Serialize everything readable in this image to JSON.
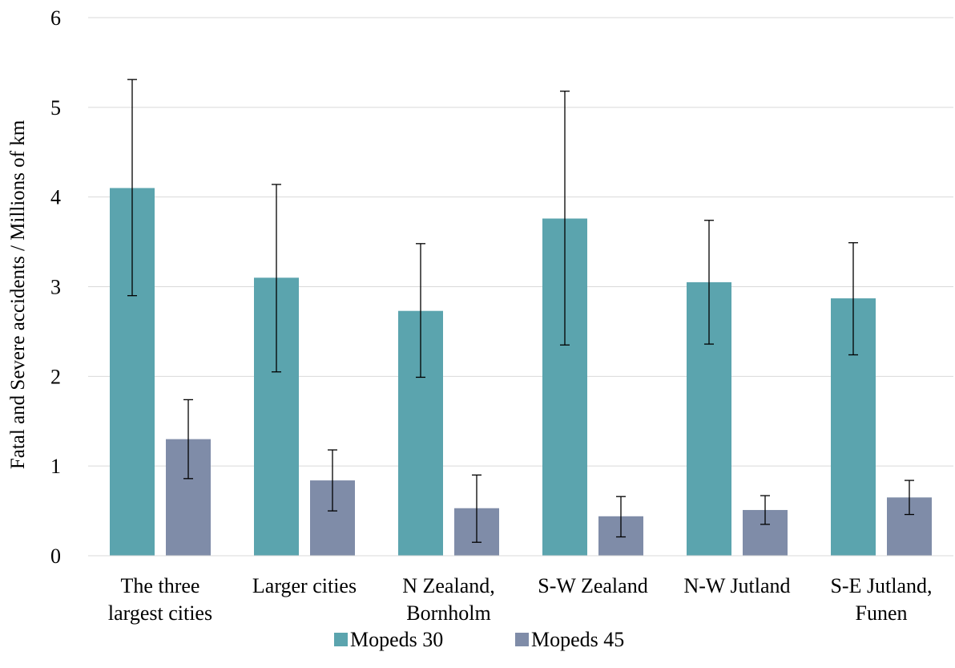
{
  "chart_data": {
    "type": "bar",
    "title": "",
    "xlabel": "",
    "ylabel": "Fatal and Severe accidents / Millions of km",
    "ylim": [
      0,
      6
    ],
    "yticks": [
      0,
      1,
      2,
      3,
      4,
      5,
      6
    ],
    "grid": true,
    "legend_position": "bottom",
    "categories": [
      [
        "The three",
        "largest cities"
      ],
      [
        "Larger cities"
      ],
      [
        "N Zealand,",
        "Bornholm"
      ],
      [
        "S-W Zealand"
      ],
      [
        "N-W Jutland"
      ],
      [
        "S-E Jutland,",
        "Funen"
      ]
    ],
    "series": [
      {
        "name": "Mopeds 30",
        "color": "#5BA4AE",
        "values": [
          4.1,
          3.1,
          2.73,
          3.76,
          3.05,
          2.87
        ],
        "error_low": [
          2.9,
          2.05,
          1.99,
          2.35,
          2.36,
          2.24
        ],
        "error_high": [
          5.31,
          4.14,
          3.48,
          5.18,
          3.74,
          3.49
        ]
      },
      {
        "name": "Mopeds 45",
        "color": "#7F8CA8",
        "values": [
          1.3,
          0.84,
          0.53,
          0.44,
          0.51,
          0.65
        ],
        "error_low": [
          0.86,
          0.5,
          0.15,
          0.21,
          0.35,
          0.46
        ],
        "error_high": [
          1.74,
          1.18,
          0.9,
          0.66,
          0.67,
          0.84
        ]
      }
    ]
  }
}
